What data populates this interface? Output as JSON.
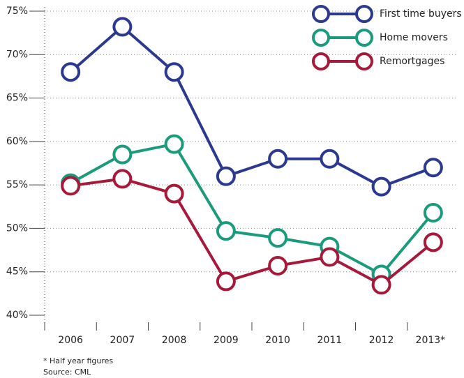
{
  "chart_data": {
    "type": "line",
    "categories": [
      "2006",
      "2007",
      "2008",
      "2009",
      "2010",
      "2011",
      "2012",
      "2013*"
    ],
    "series": [
      {
        "name": "First time buyers",
        "color": "#2b3990",
        "values": [
          68,
          73.2,
          68,
          56,
          58,
          58,
          54.8,
          57
        ]
      },
      {
        "name": "Home movers",
        "color": "#1a9b7c",
        "values": [
          55.2,
          58.5,
          59.7,
          49.7,
          48.9,
          47.9,
          44.7,
          51.8
        ]
      },
      {
        "name": "Remortgages",
        "color": "#a6193a",
        "values": [
          54.9,
          55.7,
          54,
          43.9,
          45.7,
          46.7,
          43.5,
          48.4
        ]
      }
    ],
    "ylim": [
      40,
      75
    ],
    "yticks": [
      {
        "value": 40,
        "label": "40%"
      },
      {
        "value": 45,
        "label": "45%"
      },
      {
        "value": 50,
        "label": "50%"
      },
      {
        "value": 55,
        "label": "55%"
      },
      {
        "value": 60,
        "label": "60%"
      },
      {
        "value": 65,
        "label": "65%"
      },
      {
        "value": 70,
        "label": "70%"
      },
      {
        "value": 75,
        "label": "75%"
      }
    ],
    "grid": true,
    "legend": "top-right",
    "notes": [
      "* Half year figures",
      "Source: CML"
    ]
  }
}
